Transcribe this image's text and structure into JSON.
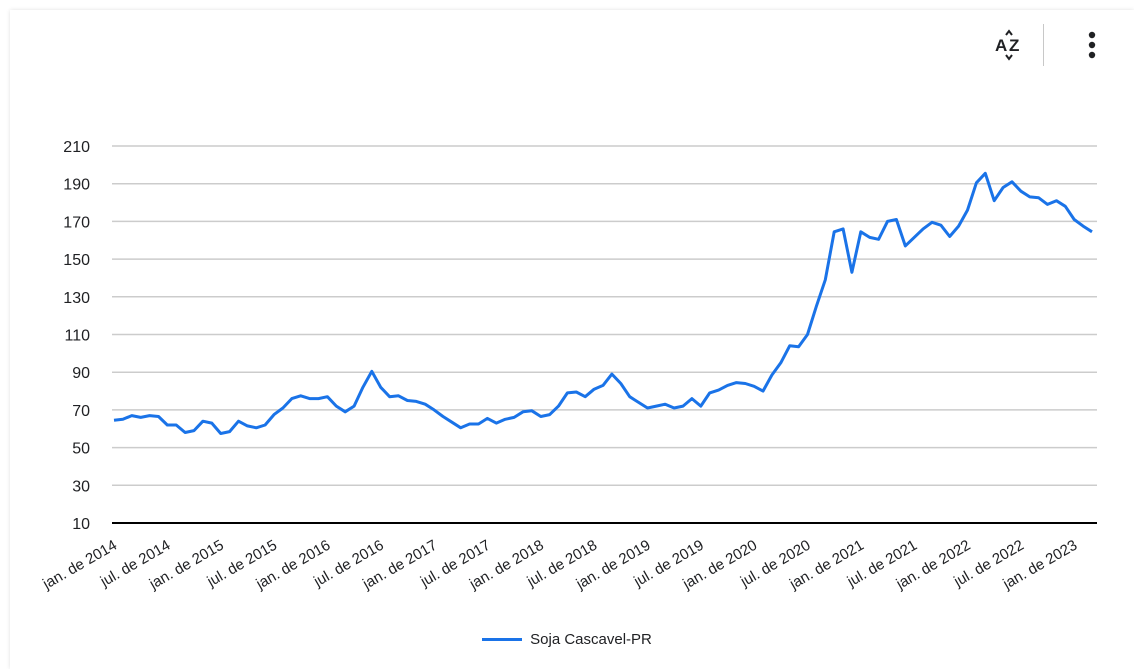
{
  "toolbar": {
    "sort_icon": "sort-az-icon",
    "menu_icon": "more-vert-icon"
  },
  "colors": {
    "series": "#1a73e8",
    "grid": "#cccccc",
    "axis": "#000000"
  },
  "chart_data": {
    "type": "line",
    "title": "",
    "xlabel": "",
    "ylabel": "",
    "ylim": [
      10,
      210
    ],
    "yticks": [
      10,
      30,
      50,
      70,
      90,
      110,
      130,
      150,
      170,
      190,
      210
    ],
    "grid": true,
    "legend": "bottom",
    "x_tick_labels": [
      "jan. de 2014",
      "jul. de 2014",
      "jan. de 2015",
      "jul. de 2015",
      "jan. de 2016",
      "jul. de 2016",
      "jan. de 2017",
      "jul. de 2017",
      "jan. de 2018",
      "jul. de 2018",
      "jan. de 2019",
      "jul. de 2019",
      "jan. de 2020",
      "jul. de 2020",
      "jan. de 2021",
      "jul. de 2021",
      "jan. de 2022",
      "jul. de 2022",
      "jan. de 2023"
    ],
    "series": [
      {
        "name": "Soja Cascavel-PR",
        "start": "jan. de 2014",
        "frequency": "monthly",
        "values": [
          64.5,
          65,
          67,
          66,
          67,
          66.5,
          62,
          62,
          58,
          59,
          64,
          63,
          57.5,
          58.5,
          64,
          61.5,
          60.5,
          62,
          67.5,
          71,
          76,
          77.5,
          76,
          76,
          77,
          72,
          69,
          72,
          82,
          90.5,
          82,
          77,
          77.5,
          75,
          74.5,
          73,
          70,
          66.5,
          63.5,
          60.5,
          62.5,
          62.5,
          65.5,
          63,
          65,
          66,
          69,
          69.5,
          66.5,
          67.5,
          72,
          79,
          79.5,
          77,
          81,
          83,
          89,
          84,
          77,
          74,
          71,
          72,
          73,
          71,
          72,
          76,
          72,
          79,
          80.5,
          83,
          84.5,
          84,
          82.5,
          80,
          88.5,
          95,
          104,
          103.5,
          110,
          125,
          139,
          164.5,
          166,
          143,
          164.5,
          161.5,
          160.5,
          170,
          171,
          157,
          161.5,
          166,
          169.5,
          168,
          162,
          167.5,
          176,
          190.5,
          195.5,
          181,
          188,
          191,
          186,
          183,
          182.5,
          179,
          181,
          178,
          171,
          167.5,
          164.5
        ]
      }
    ]
  }
}
